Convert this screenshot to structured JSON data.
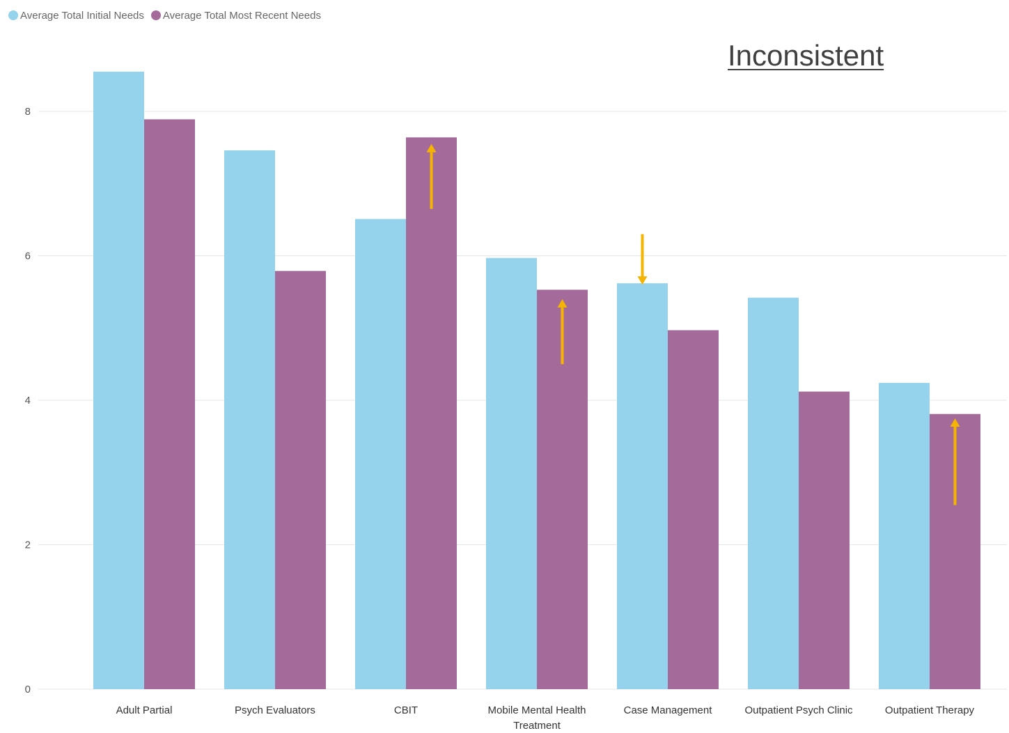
{
  "chart_data": {
    "type": "bar",
    "categories": [
      "Adult Partial",
      "Psych Evaluators",
      "CBIT",
      "Mobile Mental Health Treatment",
      "Case Management",
      "Outpatient Psych Clinic",
      "Outpatient Therapy"
    ],
    "category_lines": [
      [
        "Adult Partial"
      ],
      [
        "Psych Evaluators"
      ],
      [
        "CBIT"
      ],
      [
        "Mobile Mental Health",
        "Treatment"
      ],
      [
        "Case Management"
      ],
      [
        "Outpatient Psych Clinic"
      ],
      [
        "Outpatient Therapy"
      ]
    ],
    "series": [
      {
        "name": "Average Total Initial Needs",
        "color": "#95D3EC",
        "values": [
          8.55,
          7.46,
          6.51,
          5.97,
          5.62,
          5.42,
          4.24
        ]
      },
      {
        "name": "Average Total Most Recent Needs",
        "color": "#A46A99",
        "values": [
          7.89,
          5.79,
          7.64,
          5.53,
          4.97,
          4.12,
          3.81
        ]
      }
    ],
    "ylim": [
      0,
      8.8
    ],
    "yticks": [
      0,
      2,
      4,
      6,
      8
    ],
    "grid": true,
    "legend_position": "top-left",
    "title": "",
    "xlabel": "",
    "ylabel": "",
    "annotations": [
      {
        "text": "Inconsistent"
      }
    ],
    "arrows": [
      {
        "category_index": 2,
        "series_index": 1,
        "direction": "up",
        "from": 6.65,
        "to": 7.55,
        "color": "#F5B400"
      },
      {
        "category_index": 3,
        "series_index": 1,
        "direction": "up",
        "from": 4.5,
        "to": 5.4,
        "color": "#F5B400"
      },
      {
        "category_index": 4,
        "series_index": 0,
        "direction": "down",
        "from": 6.3,
        "to": 5.6,
        "color": "#F5B400"
      },
      {
        "category_index": 6,
        "series_index": 1,
        "direction": "up",
        "from": 2.55,
        "to": 3.75,
        "color": "#F5B400"
      }
    ]
  }
}
